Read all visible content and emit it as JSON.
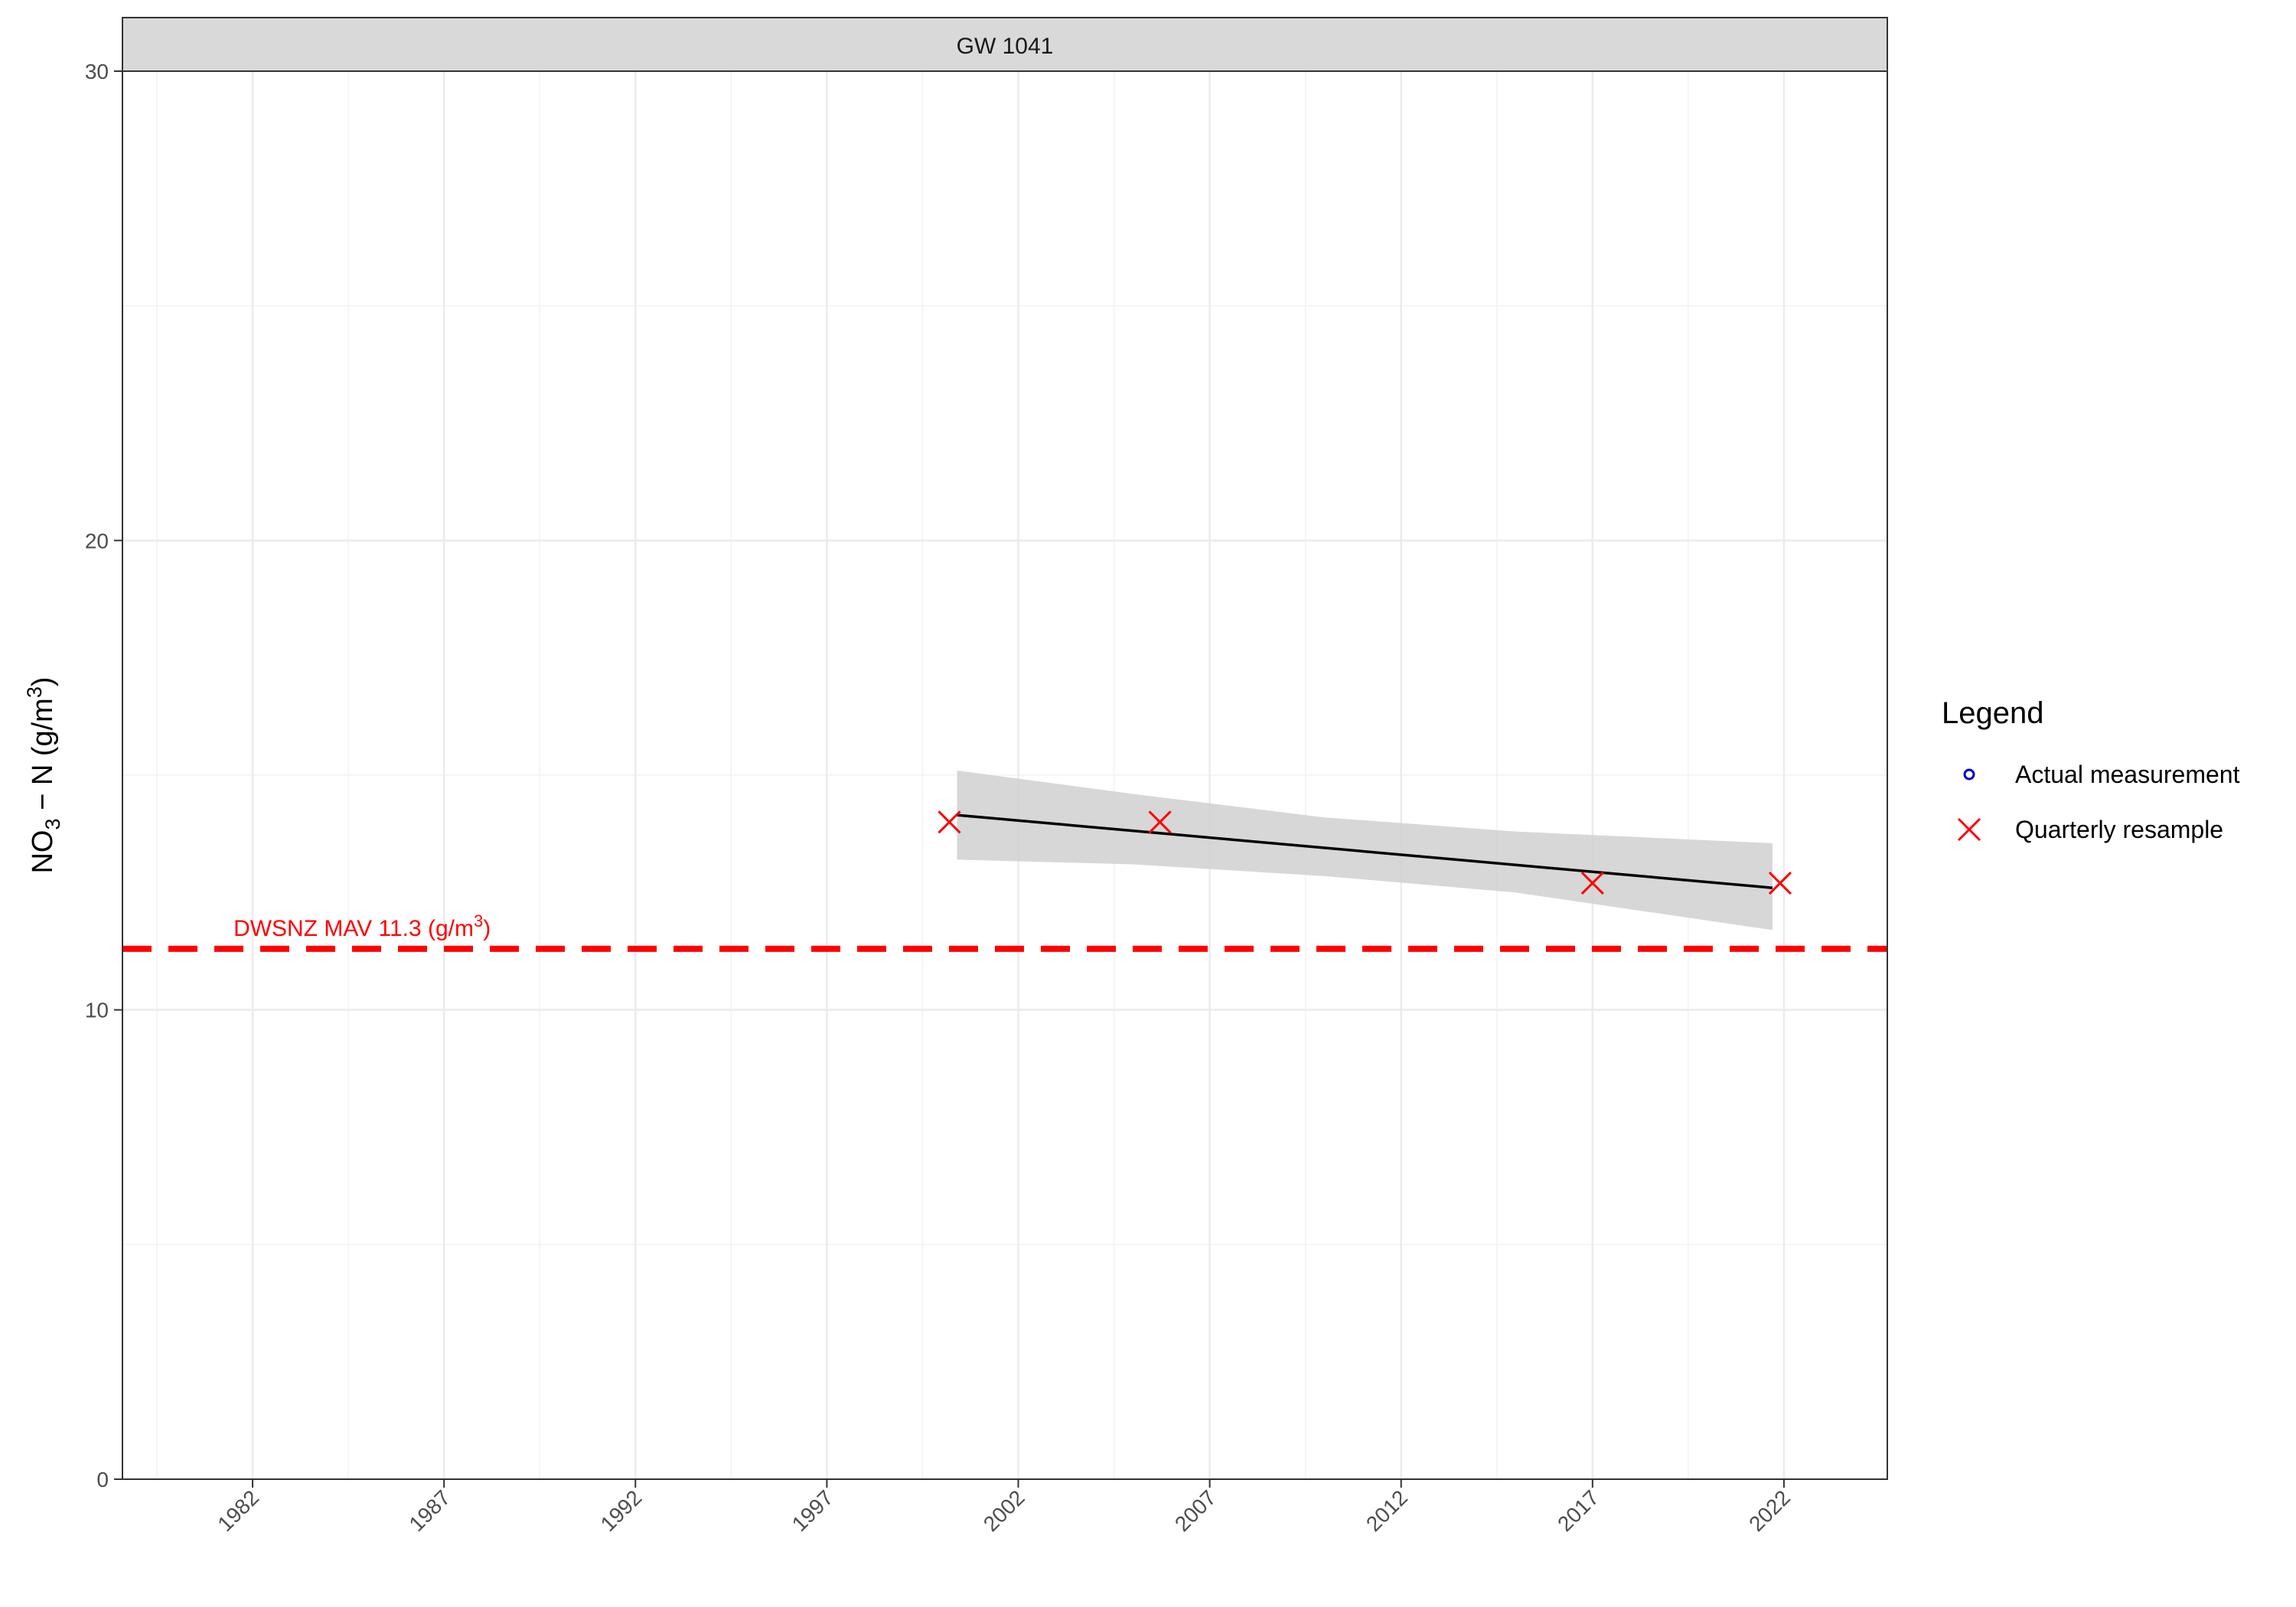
{
  "chart_data": {
    "type": "scatter",
    "facet_title": "GW 1041",
    "ylabel": {
      "main": "NO",
      "sub": "3",
      "mid": " − N (g/m",
      "sup": "3",
      "end": ")"
    },
    "xlabel": "",
    "x_ticks": [
      "1982",
      "1987",
      "1992",
      "1997",
      "2002",
      "2007",
      "2012",
      "2017",
      "2022"
    ],
    "y_ticks": [
      "0",
      "10",
      "20",
      "30"
    ],
    "xlim": [
      1978.6,
      2024.7
    ],
    "ylim": [
      0,
      30
    ],
    "grid": true,
    "series": [
      {
        "name": "Actual measurement",
        "marker": "circle",
        "color": "#0000cd",
        "points": []
      },
      {
        "name": "Quarterly resample",
        "marker": "x",
        "color": "#ff0000",
        "points": [
          {
            "x": 2000.2,
            "y": 14.0
          },
          {
            "x": 2005.7,
            "y": 14.0
          },
          {
            "x": 2017.0,
            "y": 12.7
          },
          {
            "x": 2021.9,
            "y": 12.7
          }
        ]
      }
    ],
    "trend_line": {
      "color": "#000000",
      "points": [
        {
          "x": 2000.4,
          "y": 14.15
        },
        {
          "x": 2021.7,
          "y": 12.6
        }
      ]
    },
    "confidence_band": {
      "color": "#d0d0d0",
      "upper": [
        {
          "x": 2000.4,
          "y": 15.1
        },
        {
          "x": 2005.0,
          "y": 14.6
        },
        {
          "x": 2010.0,
          "y": 14.1
        },
        {
          "x": 2015.0,
          "y": 13.8
        },
        {
          "x": 2021.7,
          "y": 13.55
        }
      ],
      "lower": [
        {
          "x": 2000.4,
          "y": 13.2
        },
        {
          "x": 2005.0,
          "y": 13.1
        },
        {
          "x": 2010.0,
          "y": 12.85
        },
        {
          "x": 2015.0,
          "y": 12.5
        },
        {
          "x": 2021.7,
          "y": 11.7
        }
      ]
    },
    "reference_line": {
      "y": 11.3,
      "color": "#ff0000",
      "style": "dashed",
      "label_main": "DWSNZ MAV 11.3 (g/m",
      "label_sup": "3",
      "label_end": ")",
      "label_x": 1981.5
    },
    "legend": {
      "title": "Legend",
      "position": "right",
      "entries": [
        {
          "label": "Actual measurement",
          "marker": "circle",
          "color": "#0000cd"
        },
        {
          "label": "Quarterly resample",
          "marker": "x",
          "color": "#ff0000"
        }
      ]
    }
  }
}
